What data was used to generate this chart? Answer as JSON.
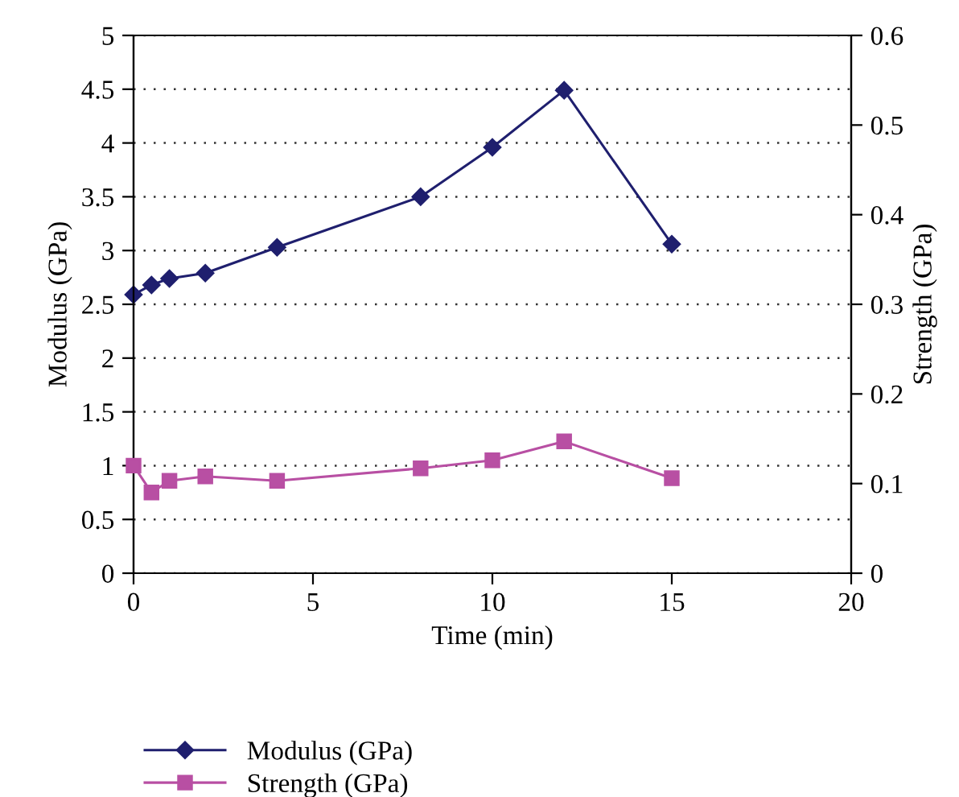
{
  "chart_data": {
    "type": "line",
    "xlabel": "Time (min)",
    "ylabel": "Modulus (GPa)",
    "y2label": "Strength (GPa)",
    "x": [
      0,
      0.5,
      1,
      2,
      4,
      8,
      10,
      12,
      15
    ],
    "series": [
      {
        "name": "Modulus (GPa)",
        "color": "#1f1f6e",
        "marker": "diamond",
        "values": [
          2.59,
          2.68,
          2.74,
          2.79,
          3.03,
          3.5,
          3.96,
          4.49,
          3.06
        ]
      },
      {
        "name": "Strength (GPa)",
        "color": "#b84fa3",
        "marker": "square",
        "axis": "y2",
        "values": [
          0.12,
          0.09,
          0.103,
          0.108,
          0.103,
          0.117,
          0.126,
          0.147,
          0.106
        ]
      }
    ],
    "xlim": [
      0,
      20
    ],
    "xticks": [
      0,
      5,
      10,
      15,
      20
    ],
    "ylim": [
      0,
      5
    ],
    "yticks": [
      0,
      0.5,
      1,
      1.5,
      2,
      2.5,
      3,
      3.5,
      4,
      4.5,
      5
    ],
    "y2lim": [
      0,
      0.6
    ],
    "y2ticks": [
      0,
      0.1,
      0.2,
      0.3,
      0.4,
      0.5,
      0.6
    ],
    "grid": "y",
    "legend": "bottom",
    "line_style": "solid"
  }
}
